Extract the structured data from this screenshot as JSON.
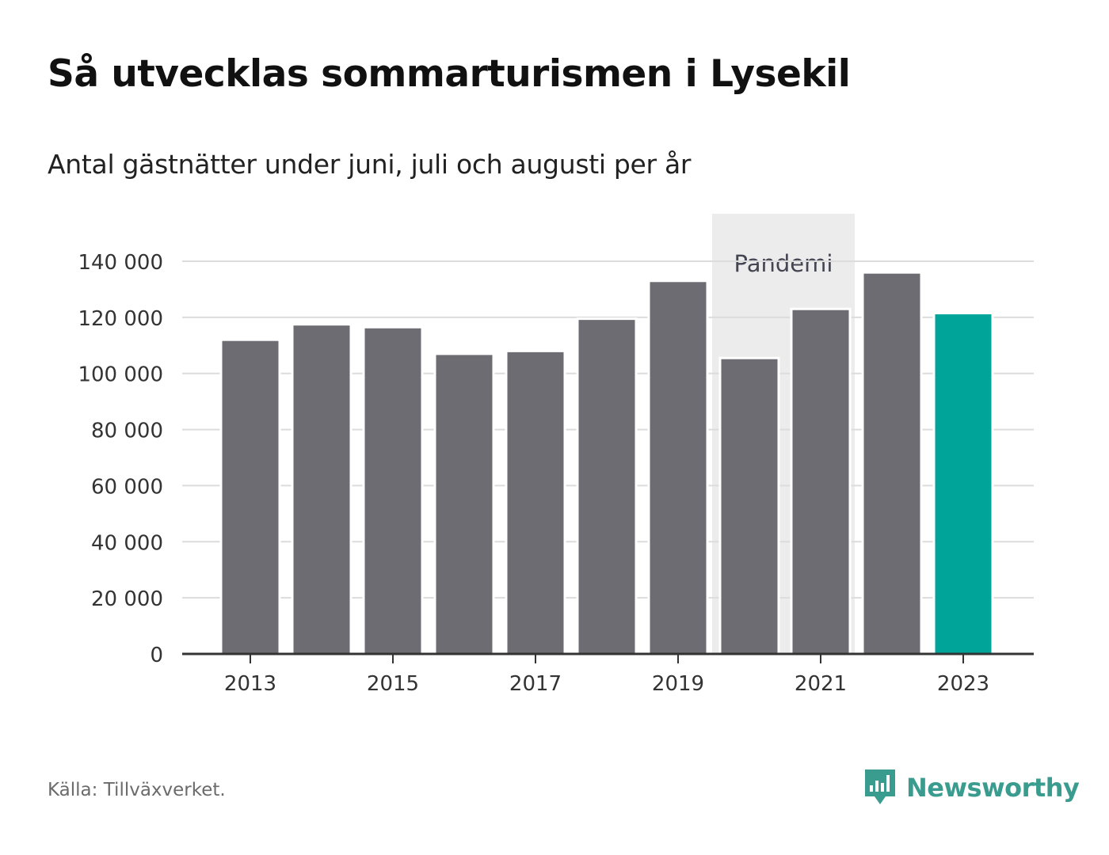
{
  "title": "Så utvecklas sommarturismen i Lysekil",
  "subtitle": "Antal gästnätter under juni, juli och augusti per år",
  "source": "Källa: Tillväxverket.",
  "brand": {
    "name": "Newsworthy",
    "icon": "newsworthy-logo-icon",
    "color": "#3a9c8e"
  },
  "colors": {
    "bar": "#6d6c72",
    "highlight": "#00a499",
    "band": "#ececec",
    "grid": "#dcdcdc",
    "axis": "#333333"
  },
  "chart_data": {
    "type": "bar",
    "categories": [
      "2013",
      "2014",
      "2015",
      "2016",
      "2017",
      "2018",
      "2019",
      "2020",
      "2021",
      "2022",
      "2023"
    ],
    "values": [
      112000,
      117500,
      116500,
      107000,
      108000,
      119500,
      133000,
      105500,
      123000,
      136000,
      121500
    ],
    "highlight_category": "2023",
    "x_tick_labels": [
      "2013",
      "2015",
      "2017",
      "2019",
      "2021",
      "2023"
    ],
    "y_ticks": [
      0,
      20000,
      40000,
      60000,
      80000,
      100000,
      120000,
      140000
    ],
    "y_tick_labels": [
      "0",
      "20 000",
      "40 000",
      "60 000",
      "80 000",
      "100 000",
      "120 000",
      "140 000"
    ],
    "ylim": [
      0,
      140000
    ],
    "grid": true,
    "annotation": {
      "label": "Pandemi",
      "from": "2020",
      "to": "2021"
    }
  }
}
